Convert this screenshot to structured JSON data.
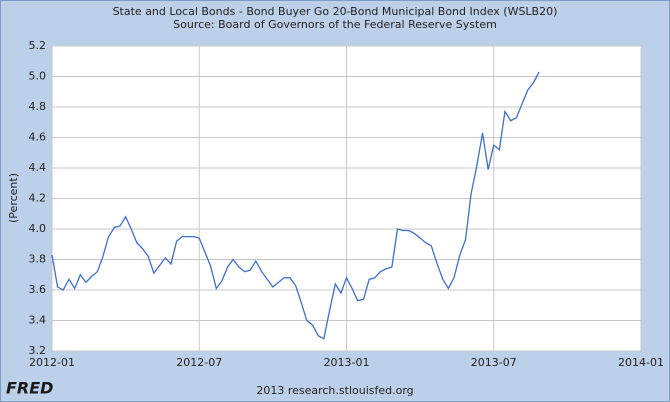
{
  "chart_data": {
    "type": "line",
    "title": "State and Local Bonds - Bond Buyer Go 20-Bond Municipal Bond Index (WSLB20)",
    "subtitle": "Source: Board of Governors of the Federal Reserve System",
    "y_label": "(Percent)",
    "footer": "2013 research.stlouisfed.org",
    "logo": "FRED",
    "grid": true,
    "color": "#3d6fd0",
    "xlim": [
      2012,
      2014
    ],
    "xticks": [
      {
        "value": 2012,
        "label": "2012-01"
      },
      {
        "value": 2012.5,
        "label": "2012-07"
      },
      {
        "value": 2013,
        "label": "2013-01"
      },
      {
        "value": 2013.5,
        "label": "2013-07"
      },
      {
        "value": 2014,
        "label": "2014-01"
      }
    ],
    "ylim": [
      3.2,
      5.2
    ],
    "yticks": [
      3.2,
      3.4,
      3.6,
      3.8,
      {
        "value": 4,
        "label": "4.0"
      },
      4.2,
      4.4,
      4.6,
      4.8,
      {
        "value": 5,
        "label": "5.0"
      },
      5.2
    ],
    "x": [
      2012,
      2012.019,
      2012.038,
      2012.058,
      2012.077,
      2012.096,
      2012.115,
      2012.135,
      2012.154,
      2012.173,
      2012.192,
      2012.212,
      2012.231,
      2012.25,
      2012.269,
      2012.288,
      2012.308,
      2012.327,
      2012.346,
      2012.365,
      2012.385,
      2012.404,
      2012.423,
      2012.442,
      2012.462,
      2012.481,
      2012.5,
      2012.519,
      2012.538,
      2012.558,
      2012.577,
      2012.596,
      2012.615,
      2012.635,
      2012.654,
      2012.673,
      2012.692,
      2012.712,
      2012.731,
      2012.75,
      2012.769,
      2012.788,
      2012.808,
      2012.827,
      2012.846,
      2012.865,
      2012.885,
      2012.904,
      2012.923,
      2012.942,
      2012.962,
      2012.981,
      2013,
      2013.019,
      2013.038,
      2013.058,
      2013.077,
      2013.096,
      2013.115,
      2013.135,
      2013.154,
      2013.173,
      2013.192,
      2013.212,
      2013.231,
      2013.25,
      2013.269,
      2013.288,
      2013.308,
      2013.327,
      2013.346,
      2013.365,
      2013.385,
      2013.404,
      2013.423,
      2013.442,
      2013.462,
      2013.481,
      2013.5,
      2013.519,
      2013.538,
      2013.558,
      2013.577,
      2013.596,
      2013.615,
      2013.635,
      2013.654
    ],
    "values": [
      3.83,
      3.62,
      3.6,
      3.67,
      3.61,
      3.7,
      3.65,
      3.69,
      3.72,
      3.82,
      3.95,
      4.01,
      4.02,
      4.08,
      4.0,
      3.91,
      3.87,
      3.82,
      3.71,
      3.76,
      3.81,
      3.77,
      3.92,
      3.95,
      3.95,
      3.95,
      3.94,
      3.85,
      3.76,
      3.61,
      3.66,
      3.75,
      3.8,
      3.75,
      3.72,
      3.73,
      3.79,
      3.72,
      3.67,
      3.62,
      3.65,
      3.68,
      3.68,
      3.63,
      3.52,
      3.4,
      3.37,
      3.3,
      3.28,
      3.46,
      3.64,
      3.58,
      3.68,
      3.61,
      3.53,
      3.54,
      3.67,
      3.68,
      3.72,
      3.74,
      3.75,
      4.0,
      3.99,
      3.99,
      3.97,
      3.94,
      3.91,
      3.89,
      3.77,
      3.67,
      3.61,
      3.68,
      3.83,
      3.93,
      4.23,
      4.41,
      4.63,
      4.39,
      4.55,
      4.52,
      4.77,
      4.71,
      4.73,
      4.82,
      4.91,
      4.96,
      5.03
    ]
  }
}
